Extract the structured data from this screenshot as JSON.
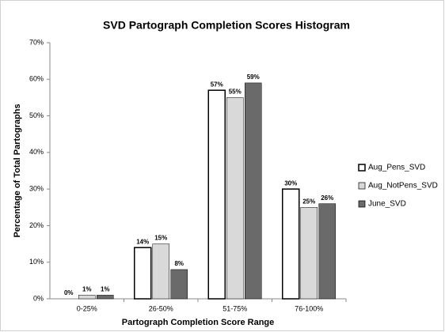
{
  "chart_data": {
    "type": "bar",
    "title": "SVD Partograph Completion Scores Histogram",
    "xlabel": "Partograph Completion Score Range",
    "ylabel": "Percentage of Total Partographs",
    "categories": [
      "0-25%",
      "26-50%",
      "51-75%",
      "76-100%"
    ],
    "series": [
      {
        "name": "Aug_Pens_SVD",
        "color": "#ffffff",
        "values": [
          0,
          14,
          57,
          30
        ],
        "value_labels": [
          "0%",
          "14%",
          "57%",
          "30%"
        ]
      },
      {
        "name": "Aug_NotPens_SVD",
        "color": "#d9d9d9",
        "values": [
          1,
          15,
          55,
          25
        ],
        "value_labels": [
          "1%",
          "15%",
          "55%",
          "25%"
        ]
      },
      {
        "name": "June_SVD",
        "color": "#6a6a6a",
        "values": [
          1,
          8,
          59,
          26
        ],
        "value_labels": [
          "1%",
          "8%",
          "59%",
          "26%"
        ]
      }
    ],
    "ylim": [
      0,
      70
    ],
    "yticks": [
      {
        "value": 0,
        "label": "0%"
      },
      {
        "value": 10,
        "label": "10%"
      },
      {
        "value": 20,
        "label": "20%"
      },
      {
        "value": 30,
        "label": "30%"
      },
      {
        "value": 40,
        "label": "40%"
      },
      {
        "value": 50,
        "label": "50%"
      },
      {
        "value": 60,
        "label": "60%"
      },
      {
        "value": 70,
        "label": "70%"
      }
    ],
    "legend": "right"
  }
}
